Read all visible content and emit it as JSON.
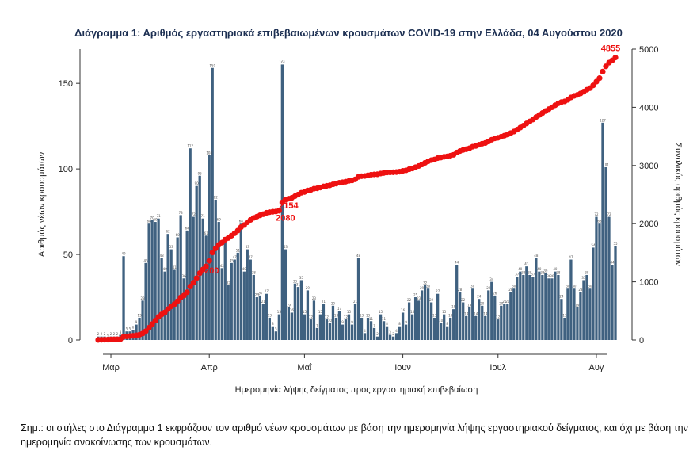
{
  "chart_data": {
    "type": "bar+line",
    "title": "Διάγραμμα 1: Αριθμός εργαστηριακά επιβεβαιωμένων κρουσμάτων COVID-19 στην Ελλάδα, 04 Αυγούστου 2020",
    "xlabel": "Ημερομηνία λήψης δείγματος προς εργαστηριακή επιβεβαίωση",
    "ylabel_left": "Αριθμός νέων κρουσμάτων",
    "ylabel_right": "Συνολικός αριθμός κρουσμάτων",
    "ylim_left": [
      0,
      170
    ],
    "ylim_right": [
      0,
      5000
    ],
    "yticks_left": [
      0,
      50,
      100,
      150
    ],
    "yticks_right": [
      0,
      1000,
      2000,
      3000,
      4000,
      5000
    ],
    "x_month_ticks": [
      {
        "label": "Μαρ",
        "day": 4
      },
      {
        "label": "Απρ",
        "day": 35
      },
      {
        "label": "Μαΐ",
        "day": 65
      },
      {
        "label": "Ιουν",
        "day": 96
      },
      {
        "label": "Ιουλ",
        "day": 126
      },
      {
        "label": "Αυγ",
        "day": 157
      }
    ],
    "bars": {
      "series": "Νέα κρούσματα",
      "color": "#3f6180",
      "start_day": 0,
      "values": [
        2,
        2,
        2,
        1,
        2,
        2,
        2,
        3,
        49,
        5,
        5,
        6,
        9,
        13,
        23,
        45,
        68,
        70,
        69,
        71,
        48,
        40,
        62,
        53,
        41,
        60,
        73,
        36,
        64,
        112,
        72,
        90,
        96,
        71,
        61,
        108,
        159,
        82,
        69,
        42,
        58,
        32,
        45,
        47,
        51,
        68,
        40,
        53,
        47,
        38,
        25,
        26,
        21,
        27,
        13,
        8,
        5,
        15,
        161,
        53,
        19,
        16,
        33,
        31,
        35,
        15,
        29,
        12,
        23,
        7,
        15,
        21,
        12,
        10,
        20,
        13,
        17,
        9,
        12,
        15,
        9,
        21,
        48,
        13,
        4,
        13,
        11,
        7,
        2,
        15,
        11,
        8,
        3,
        2,
        4,
        8,
        16,
        9,
        22,
        15,
        25,
        23,
        29,
        32,
        30,
        22,
        13,
        27,
        10,
        15,
        8,
        13,
        18,
        44,
        28,
        22,
        14,
        19,
        30,
        14,
        24,
        20,
        14,
        29,
        34,
        26,
        12,
        20,
        21,
        21,
        28,
        30,
        37,
        40,
        38,
        43,
        38,
        37,
        48,
        40,
        38,
        39,
        36,
        36,
        40,
        38,
        24,
        13,
        30,
        47,
        30,
        19,
        28,
        35,
        38,
        30,
        54,
        72,
        68,
        127,
        101,
        72,
        44,
        55
      ]
    },
    "line": {
      "series": "Συνολικός αριθμός κρουσμάτων",
      "color": "#ee1111",
      "final_value": 4855
    },
    "annotations": [
      {
        "text": "4855",
        "day": 163,
        "value": 4855
      },
      {
        "text": "2154",
        "day": 58,
        "value": 2154
      },
      {
        "text": "2080",
        "day": 58,
        "value": 2080
      },
      {
        "text": "1200",
        "day": 35,
        "value": 1200
      }
    ]
  },
  "note": "Σημ.: οι στήλες στο Διάγραμμα 1 εκφράζουν τον αριθμό νέων κρουσμάτων με βάση την ημερομηνία λήψης εργαστηριακού δείγματος, και όχι με βάση την ημερομηνία ανακοίνωσης των κρουσμάτων."
}
